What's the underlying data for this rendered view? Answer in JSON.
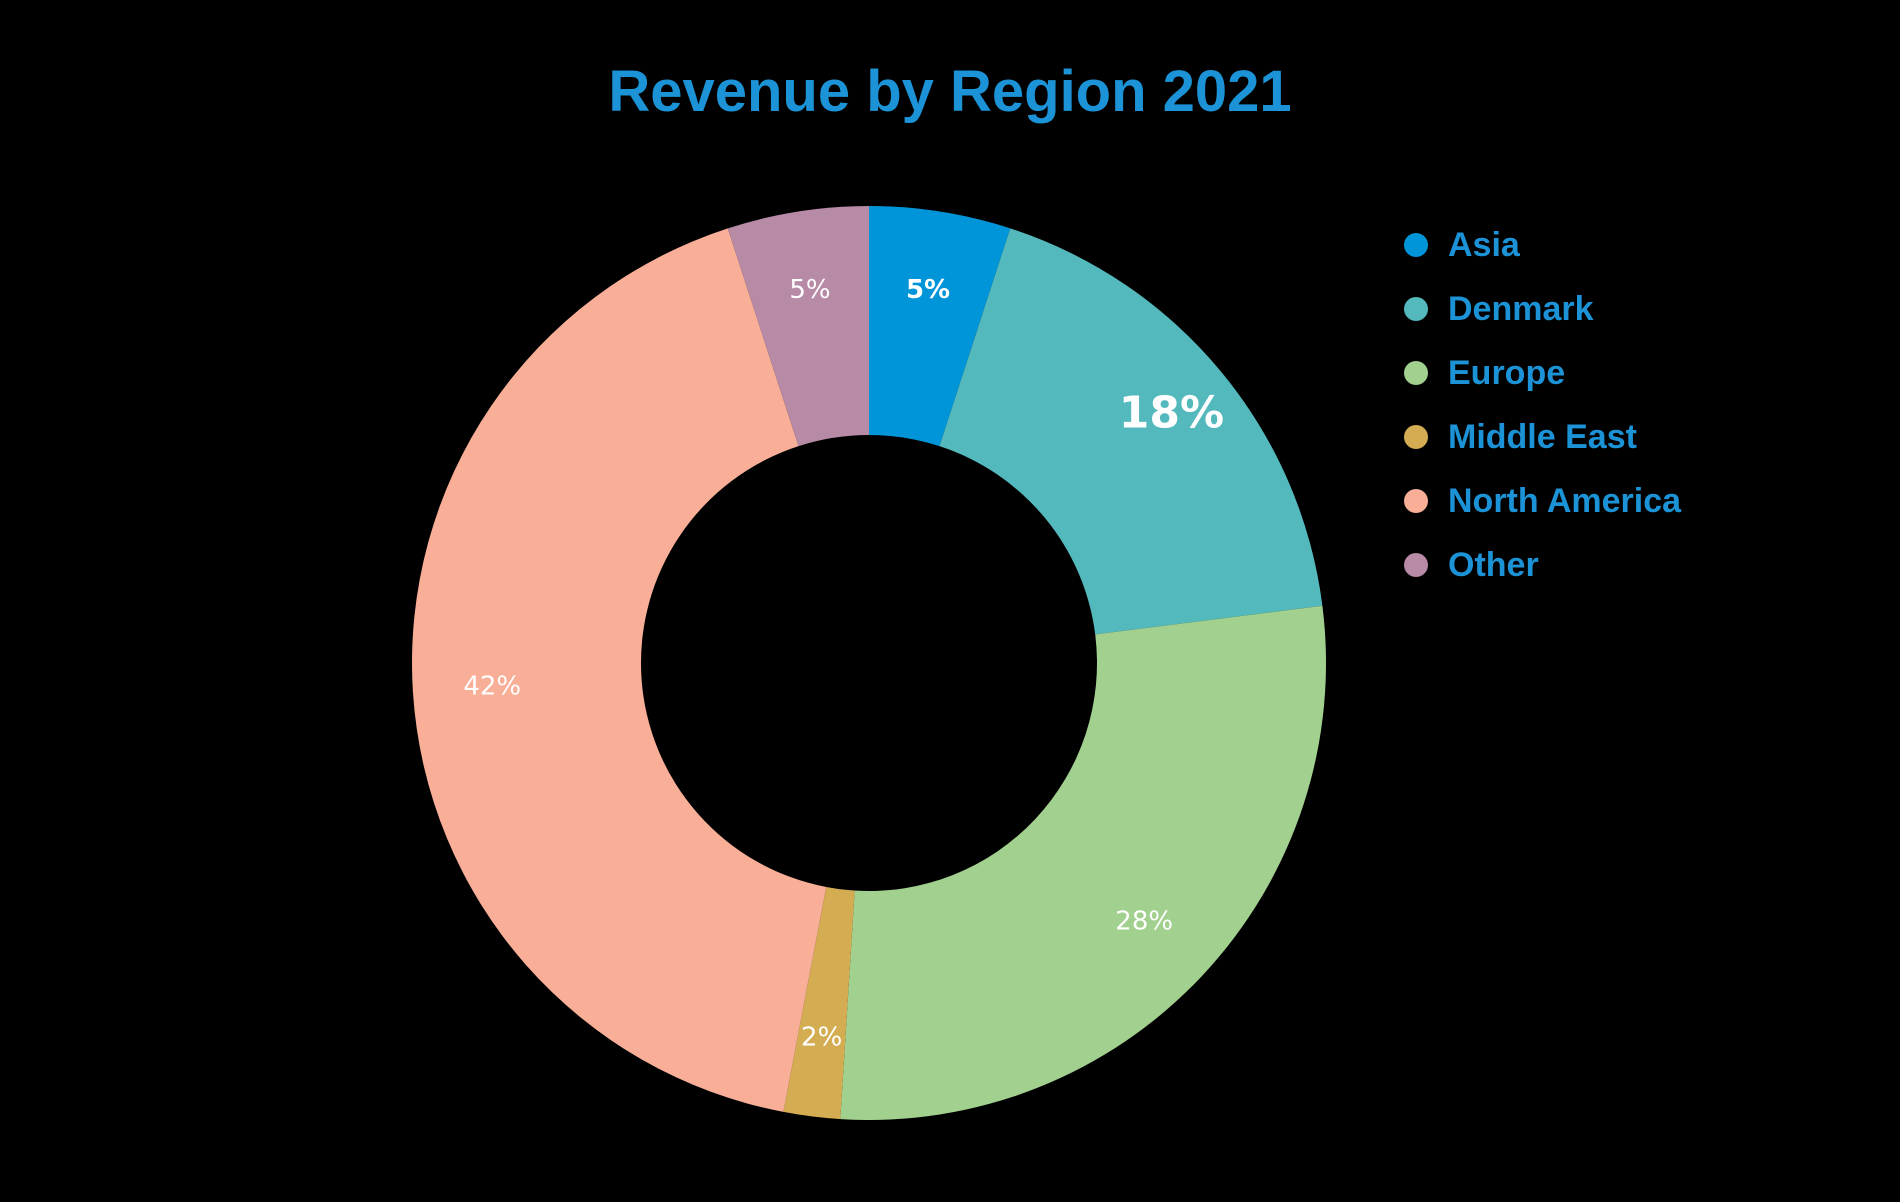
{
  "chart_data": {
    "type": "pie",
    "title": "Revenue by Region 2021",
    "donut": true,
    "legend_position": "right",
    "slices": [
      {
        "label": "Asia",
        "value": 5,
        "display": "5%",
        "color": "#0095d9"
      },
      {
        "label": "Denmark",
        "value": 18,
        "display": "18%",
        "color": "#53b9bd"
      },
      {
        "label": "Europe",
        "value": 28,
        "display": "28%",
        "color": "#a2d08e"
      },
      {
        "label": "Middle East",
        "value": 2,
        "display": "2%",
        "color": "#d4ad52"
      },
      {
        "label": "North America",
        "value": 42,
        "display": "42%",
        "color": "#f8ae97"
      },
      {
        "label": "Other",
        "value": 5,
        "display": "5%",
        "color": "#b78ba6"
      }
    ]
  },
  "colors": {
    "background": "#000000",
    "title": "#1b93d6",
    "legend_text": "#1b93d6",
    "slice_label": "#ffffff"
  }
}
